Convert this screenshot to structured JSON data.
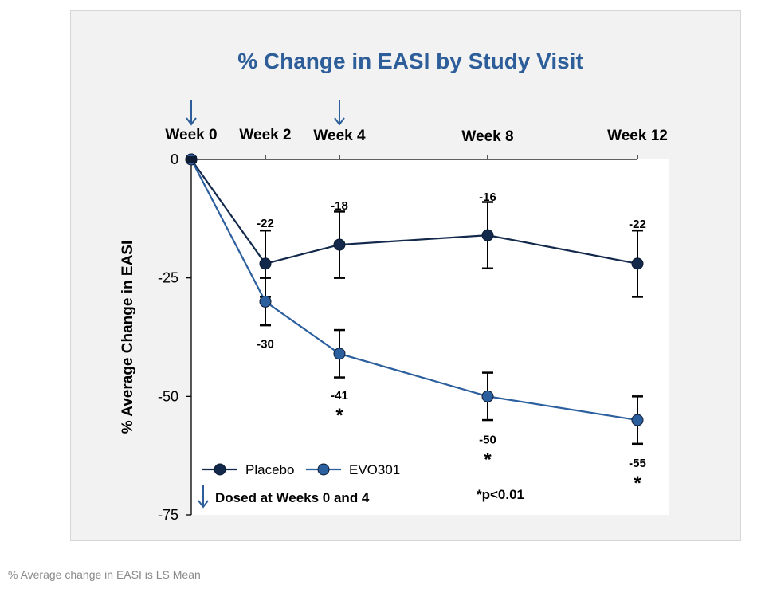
{
  "chart_data": {
    "type": "line",
    "title": "% Change in EASI by Study Visit",
    "ylabel": "% Average Change in EASI",
    "xlabel": "",
    "categories": [
      "Week 0",
      "Week 2",
      "Week 4",
      "Week 8",
      "Week 12"
    ],
    "x": [
      0,
      2,
      4,
      8,
      12
    ],
    "ylim": [
      -75,
      0
    ],
    "yticks": [
      0,
      -25,
      -50,
      -75
    ],
    "yticks_text": [
      "0",
      "-25",
      "-50",
      "-75"
    ],
    "series": [
      {
        "name": "Placebo",
        "color": "#13294b",
        "values": [
          0,
          -22,
          -18,
          -16,
          -22
        ],
        "value_labels": [
          "",
          "-22",
          "-18",
          "-16",
          "-22"
        ],
        "err_low": [
          0,
          7,
          7,
          7,
          7
        ],
        "err_high": [
          0,
          7,
          7,
          7,
          7
        ]
      },
      {
        "name": "EVO301",
        "color": "#2b5f9e",
        "values": [
          0,
          -30,
          -41,
          -50,
          -55
        ],
        "value_labels": [
          "",
          "-30",
          "-41",
          "-50",
          "-55"
        ],
        "err_low": [
          0,
          5,
          5,
          5,
          5
        ],
        "err_high": [
          0,
          5,
          5,
          5,
          5
        ],
        "significance": [
          "",
          "",
          "*",
          "*",
          "*"
        ]
      }
    ],
    "annotations": {
      "dosing": "Dosed at Weeks 0 and 4",
      "dosing_weeks": [
        0,
        4
      ],
      "pvalue": "*p<0.01"
    },
    "legend_position": "bottom-left",
    "colors": {
      "title": "#2e5e9a",
      "axis": "#000000",
      "arrow": "#2e5e9a"
    }
  },
  "footnote": "% Average change in EASI is LS Mean"
}
